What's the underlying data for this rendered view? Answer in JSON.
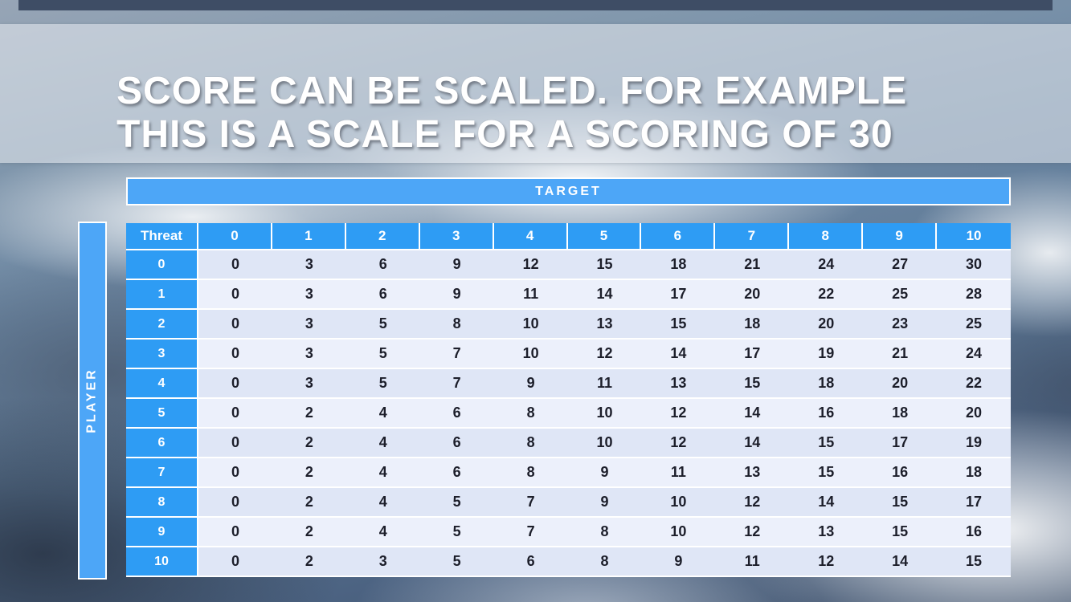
{
  "slide": {
    "title_line1": "SCORE CAN BE SCALED. FOR EXAMPLE",
    "title_line2": "THIS IS A SCALE FOR A SCORING OF 30"
  },
  "table": {
    "target_label": "TARGET",
    "player_label": "PLAYER",
    "corner_label": "Threat",
    "col_headers": [
      "0",
      "1",
      "2",
      "3",
      "4",
      "5",
      "6",
      "7",
      "8",
      "9",
      "10"
    ],
    "row_headers": [
      "0",
      "1",
      "2",
      "3",
      "4",
      "5",
      "6",
      "7",
      "8",
      "9",
      "10"
    ],
    "rows": [
      [
        0,
        3,
        6,
        9,
        12,
        15,
        18,
        21,
        24,
        27,
        30
      ],
      [
        0,
        3,
        6,
        9,
        11,
        14,
        17,
        20,
        22,
        25,
        28
      ],
      [
        0,
        3,
        5,
        8,
        10,
        13,
        15,
        18,
        20,
        23,
        25
      ],
      [
        0,
        3,
        5,
        7,
        10,
        12,
        14,
        17,
        19,
        21,
        24
      ],
      [
        0,
        3,
        5,
        7,
        9,
        11,
        13,
        15,
        18,
        20,
        22
      ],
      [
        0,
        2,
        4,
        6,
        8,
        10,
        12,
        14,
        16,
        18,
        20
      ],
      [
        0,
        2,
        4,
        6,
        8,
        10,
        12,
        14,
        15,
        17,
        19
      ],
      [
        0,
        2,
        4,
        6,
        8,
        9,
        11,
        13,
        15,
        16,
        18
      ],
      [
        0,
        2,
        4,
        5,
        7,
        9,
        10,
        12,
        14,
        15,
        17
      ],
      [
        0,
        2,
        4,
        5,
        7,
        8,
        10,
        12,
        13,
        15,
        16
      ],
      [
        0,
        2,
        3,
        5,
        6,
        8,
        9,
        11,
        12,
        14,
        15
      ]
    ]
  },
  "colors": {
    "top_bar_color": "#3e4d65",
    "bar_blue": "#4da6f7",
    "header_blue": "#2e9cf4",
    "band_dark": "#dfe6f6",
    "band_light": "#ecf0fb",
    "cell_text": "#1c1e2a"
  }
}
